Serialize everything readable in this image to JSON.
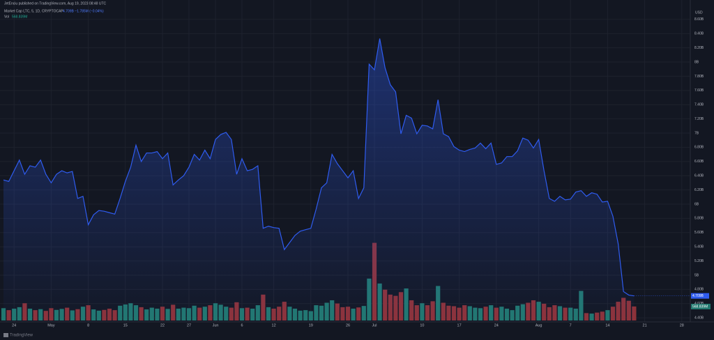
{
  "chart_data": {
    "type": "area",
    "header": {
      "author": "JetEnciu published on TradingView.com, Aug 19, 2023 08:48 UTC",
      "symbol": "Market Cap LTC, 5, 1D, CRYPTOCAP",
      "quote": "4.709B −1.785M (−0.04%)",
      "volume_label": "Vol",
      "volume_value": "568.839M"
    },
    "currency": "USD",
    "brand": "TradingView",
    "price_tag": "4.709B",
    "volume_tag": "568.839M",
    "categories": [
      null,
      null,
      "24",
      null,
      null,
      null,
      null,
      null,
      null,
      "May",
      null,
      null,
      null,
      null,
      null,
      null,
      "8",
      null,
      null,
      null,
      null,
      null,
      null,
      "15",
      null,
      null,
      null,
      null,
      null,
      null,
      "22",
      null,
      null,
      null,
      null,
      "27",
      null,
      null,
      null,
      null,
      "Jun",
      null,
      null,
      null,
      null,
      "6",
      null,
      null,
      null,
      null,
      null,
      "12",
      null,
      null,
      null,
      null,
      null,
      null,
      "19",
      null,
      null,
      null,
      null,
      null,
      null,
      "26",
      null,
      null,
      null,
      null,
      "Jul",
      null,
      null,
      null,
      null,
      null,
      null,
      null,
      null,
      "10",
      null,
      null,
      null,
      null,
      null,
      null,
      "17",
      null,
      null,
      null,
      null,
      null,
      null,
      "24",
      null,
      null,
      null,
      null,
      null,
      null,
      null,
      "Aug",
      null,
      null,
      null,
      null,
      null,
      "7",
      null,
      null,
      null,
      null,
      null,
      null,
      "14",
      null,
      null,
      null,
      null,
      null,
      null,
      "21",
      null,
      null,
      null,
      null,
      null,
      null,
      "28"
    ],
    "series": [
      {
        "name": "Market Cap",
        "color": "#2f5cf0",
        "values": [
          6.34,
          6.32,
          6.47,
          6.62,
          6.42,
          6.54,
          6.52,
          6.62,
          6.42,
          6.3,
          6.42,
          6.47,
          6.44,
          6.46,
          6.08,
          6.11,
          5.71,
          5.85,
          5.91,
          5.9,
          5.88,
          5.86,
          6.08,
          6.32,
          6.52,
          6.83,
          6.6,
          6.72,
          6.72,
          6.74,
          6.64,
          6.72,
          6.27,
          6.34,
          6.4,
          6.52,
          6.7,
          6.62,
          6.76,
          6.64,
          6.91,
          6.98,
          7.01,
          6.91,
          6.42,
          6.64,
          6.47,
          6.49,
          6.54,
          5.66,
          5.69,
          5.67,
          5.66,
          5.36,
          5.46,
          5.56,
          5.62,
          5.64,
          5.66,
          5.93,
          6.23,
          6.3,
          6.7,
          6.57,
          6.47,
          6.37,
          6.47,
          6.08,
          6.23,
          7.97,
          7.89,
          8.33,
          7.92,
          7.68,
          7.58,
          6.99,
          7.25,
          7.21,
          6.99,
          7.11,
          7.1,
          7.06,
          7.47,
          6.99,
          6.95,
          6.81,
          6.76,
          6.74,
          6.77,
          6.79,
          6.86,
          6.78,
          6.86,
          6.56,
          6.58,
          6.67,
          6.67,
          6.75,
          6.93,
          6.9,
          6.79,
          6.91,
          6.47,
          6.08,
          6.04,
          6.11,
          6.06,
          6.07,
          6.17,
          6.19,
          6.11,
          6.16,
          6.14,
          6.03,
          6.04,
          5.83,
          5.44,
          4.77,
          4.72,
          4.709,
          null,
          null,
          null,
          null,
          null,
          null,
          null,
          null,
          null
        ]
      },
      {
        "name": "Vol",
        "axis": "y2",
        "up_color": "#22786f",
        "down_color": "#8e3238",
        "values": [
          500,
          420,
          480,
          540,
          700,
          480,
          420,
          460,
          390,
          500,
          430,
          470,
          520,
          410,
          460,
          560,
          620,
          450,
          400,
          430,
          480,
          420,
          600,
          650,
          700,
          620,
          540,
          450,
          520,
          480,
          560,
          470,
          640,
          480,
          520,
          500,
          600,
          520,
          560,
          620,
          700,
          640,
          560,
          520,
          740,
          500,
          520,
          480,
          620,
          1050,
          540,
          480,
          560,
          760,
          560,
          480,
          400,
          420,
          380,
          620,
          600,
          720,
          820,
          690,
          540,
          560,
          480,
          530,
          590,
          1700,
          3150,
          1500,
          1250,
          1050,
          1000,
          1150,
          1300,
          820,
          620,
          700,
          620,
          780,
          1400,
          720,
          600,
          580,
          520,
          620,
          580,
          520,
          500,
          560,
          620,
          520,
          560,
          480,
          420,
          600,
          660,
          720,
          820,
          760,
          680,
          540,
          620,
          580,
          520,
          520,
          480,
          1200,
          300,
          280,
          320,
          360,
          420,
          560,
          760,
          920,
          800,
          568.839,
          null,
          null,
          null,
          null,
          null,
          null,
          null,
          null,
          null
        ]
      }
    ],
    "ylim": [
      4.343,
      8.873
    ],
    "yticks": [
      {
        "value": 4.4,
        "label": "4.40B"
      },
      {
        "value": 4.6,
        "label": "4.60B"
      },
      {
        "value": 4.8,
        "label": "4.80B"
      },
      {
        "value": 5,
        "label": "5B"
      },
      {
        "value": 5.2,
        "label": "5.20B"
      },
      {
        "value": 5.4,
        "label": "5.40B"
      },
      {
        "value": 5.6,
        "label": "5.60B"
      },
      {
        "value": 5.8,
        "label": "5.80B"
      },
      {
        "value": 6,
        "label": "6B"
      },
      {
        "value": 6.2,
        "label": "6.20B"
      },
      {
        "value": 6.4,
        "label": "6.40B"
      },
      {
        "value": 6.6,
        "label": "6.60B"
      },
      {
        "value": 6.8,
        "label": "6.80B"
      },
      {
        "value": 7,
        "label": "7B"
      },
      {
        "value": 7.2,
        "label": "7.20B"
      },
      {
        "value": 7.4,
        "label": "7.40B"
      },
      {
        "value": 7.6,
        "label": "7.60B"
      },
      {
        "value": 7.8,
        "label": "7.80B"
      },
      {
        "value": 8,
        "label": "8B"
      },
      {
        "value": 8.2,
        "label": "8.20B"
      },
      {
        "value": 8.4,
        "label": "8.40B"
      },
      {
        "value": 8.6,
        "label": "8.60B"
      }
    ],
    "y2lim": [
      0,
      13000
    ],
    "grid": true
  }
}
